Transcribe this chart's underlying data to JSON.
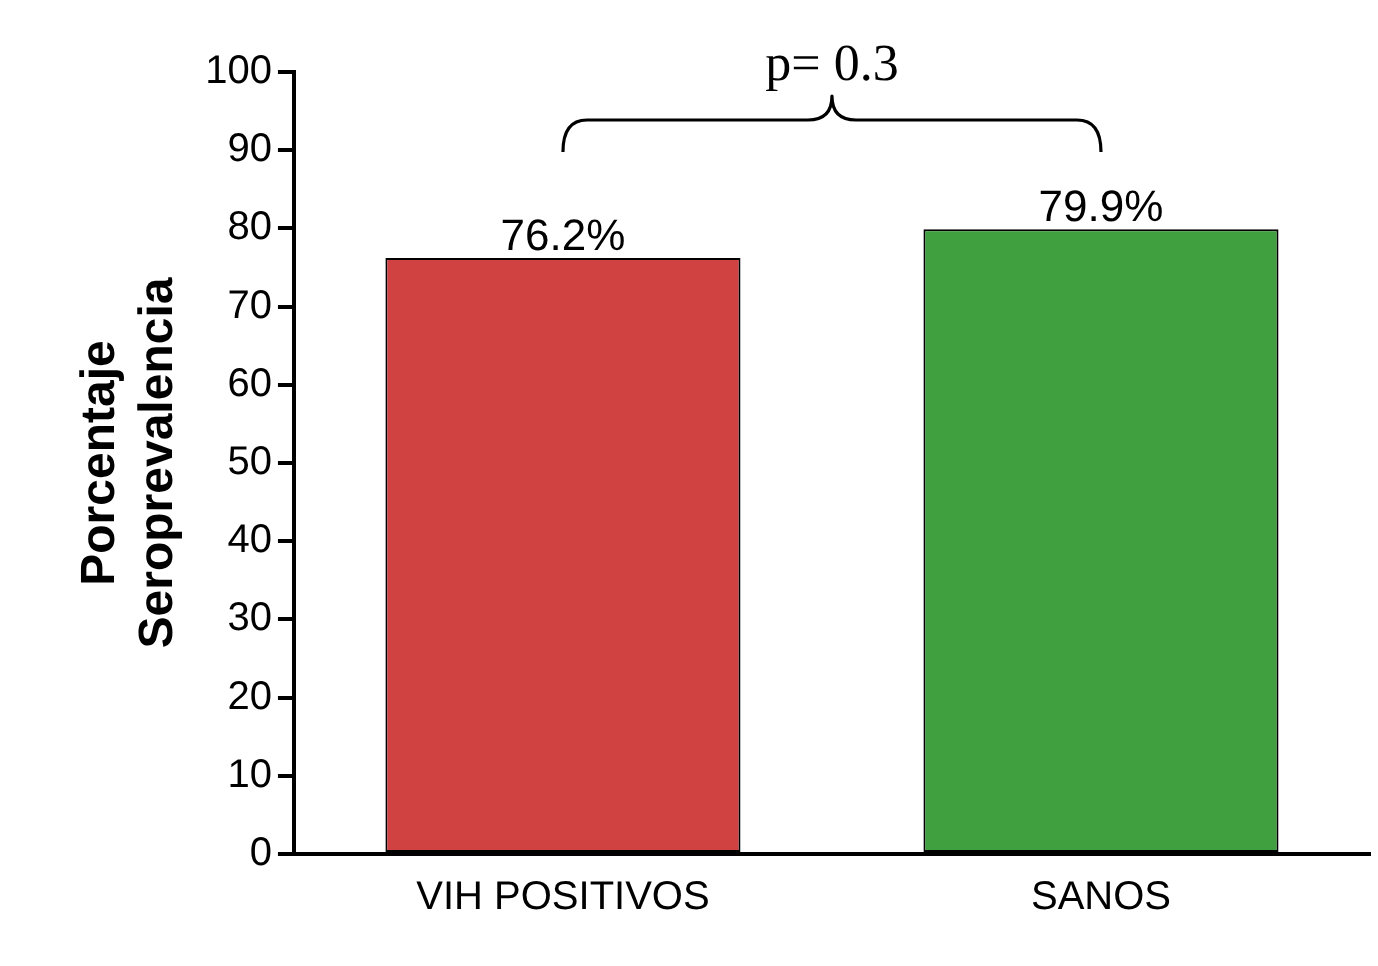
{
  "chart_data": {
    "type": "bar",
    "ylabel": "Porcentaje\nSeroprevalencia",
    "categories": [
      "VIH POSITIVOS",
      "SANOS"
    ],
    "values": [
      76.2,
      79.9
    ],
    "colors": [
      "#d04242",
      "#40a040"
    ],
    "value_labels": [
      "76.2%",
      "79.9%"
    ],
    "ylim": [
      0,
      100
    ],
    "yticks": [
      0,
      10,
      20,
      30,
      40,
      50,
      60,
      70,
      80,
      90,
      100
    ],
    "grid": false,
    "legend": false,
    "annotations": [
      "p= 0.3"
    ]
  }
}
